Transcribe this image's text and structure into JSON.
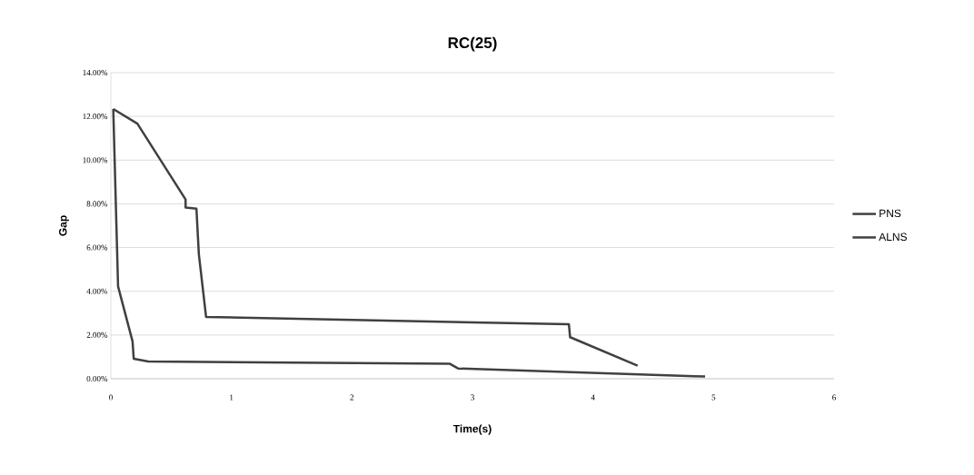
{
  "chart_data": {
    "type": "line",
    "title": "RC(25)",
    "xlabel": "Time(s)",
    "ylabel": "Gap",
    "xlim": [
      0,
      6
    ],
    "xticks": [
      0,
      1,
      2,
      3,
      4,
      5,
      6
    ],
    "ylim": [
      0,
      14
    ],
    "yticks": [
      {
        "value": 0,
        "label": "0.00%"
      },
      {
        "value": 2,
        "label": "2.00%"
      },
      {
        "value": 4,
        "label": "4.00%"
      },
      {
        "value": 6,
        "label": "6.00%"
      },
      {
        "value": 8,
        "label": "8.00%"
      },
      {
        "value": 10,
        "label": "10.00%"
      },
      {
        "value": 12,
        "label": "12.00%"
      },
      {
        "value": 14,
        "label": "14.00%"
      }
    ],
    "grid": "y",
    "legend": "right",
    "marker": "none",
    "line_style": "solid",
    "series": [
      {
        "name": "PNS",
        "color": "#404040",
        "x": [
          0.02,
          0.22,
          0.62,
          0.62,
          0.71,
          0.73,
          0.79,
          3.8,
          3.81,
          4.37
        ],
        "values": [
          12.34,
          11.67,
          8.2,
          7.83,
          7.78,
          5.7,
          2.83,
          2.49,
          1.9,
          0.6
        ]
      },
      {
        "name": "ALNS",
        "color": "#404040",
        "x": [
          0.02,
          0.06,
          0.18,
          0.19,
          0.31,
          2.81,
          2.88,
          4.93
        ],
        "values": [
          12.34,
          4.22,
          1.71,
          0.91,
          0.79,
          0.69,
          0.47,
          0.1
        ]
      }
    ]
  }
}
